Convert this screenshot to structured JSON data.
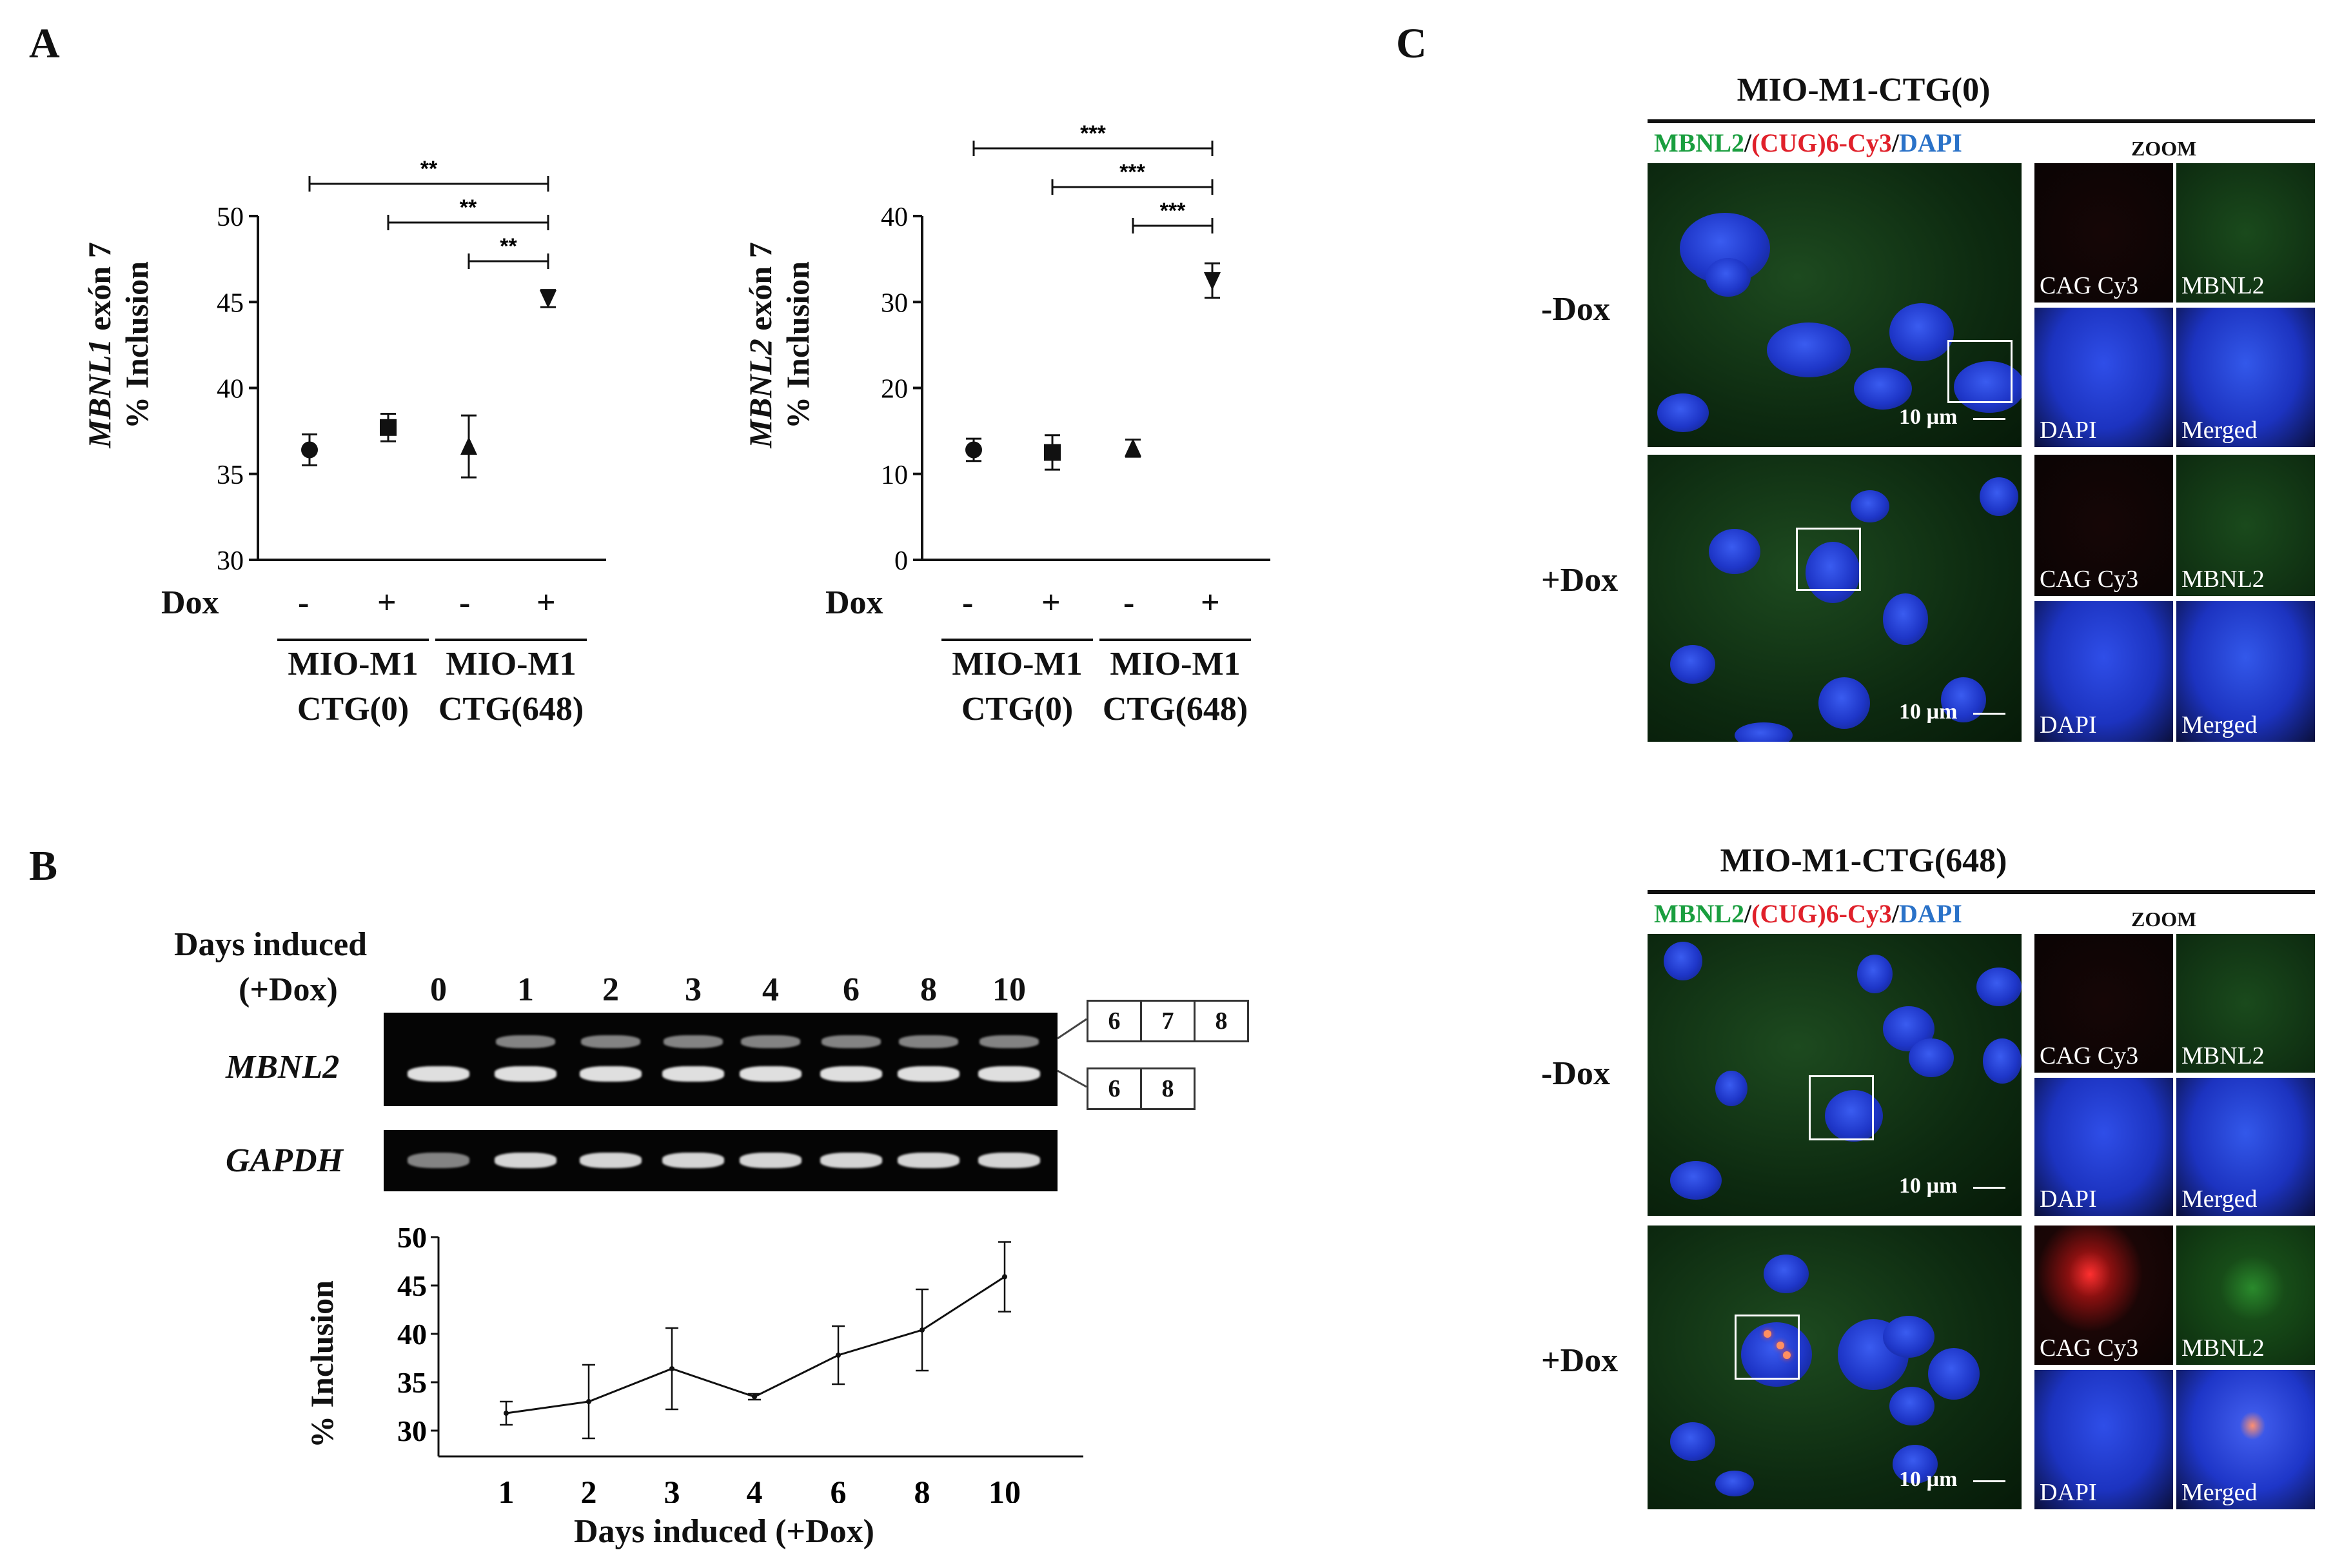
{
  "panels": {
    "a": "A",
    "b": "B",
    "c": "C"
  },
  "panelA": {
    "dox_label": "Dox",
    "dox_values": [
      "-",
      "+",
      "-",
      "+"
    ],
    "group1_line1": "MIO-M1",
    "group1_line2": "CTG(0)",
    "group2_line1": "MIO-M1",
    "group2_line2": "CTG(648)"
  },
  "panelB": {
    "days_label_1": "Days induced",
    "days_label_2": "(+Dox)",
    "lanes": [
      "0",
      "1",
      "2",
      "3",
      "4",
      "6",
      "8",
      "10"
    ],
    "gene1": "MBNL2",
    "gene2": "GAPDH",
    "exons_upper": [
      "6",
      "7",
      "8"
    ],
    "exons_lower": [
      "6",
      "8"
    ]
  },
  "panelC": {
    "title1": "MIO-M1-CTG(0)",
    "title2": "MIO-M1-CTG(648)",
    "legend_green": "MBNL2",
    "legend_sep1": "/",
    "legend_red": "(CUG)6-Cy3",
    "legend_sep2": "/",
    "legend_blue": "DAPI",
    "zoom": "ZOOM",
    "minus_dox": "-Dox",
    "plus_dox": "+Dox",
    "scale": "10 µm",
    "tile_labels": [
      "CAG Cy3",
      "MBNL2",
      "DAPI",
      "Merged"
    ]
  },
  "colors": {
    "green": "#1a9e3f",
    "red": "#e0202a",
    "blue": "#2a72c8",
    "cell_blue": "#1f3fd0",
    "bg_green": "#0f3312"
  },
  "chart_data": [
    {
      "type": "scatter",
      "ylabel_italic": "MBNL1",
      "ylabel_rest": " exón 7",
      "ylabel2": "% Inclusion",
      "ylim": [
        30,
        50
      ],
      "yticks": [
        "30",
        "35",
        "40",
        "45",
        "50"
      ],
      "points": [
        {
          "value": 36.4,
          "err": 0.9,
          "marker": "circle"
        },
        {
          "value": 37.7,
          "err": 0.8,
          "marker": "square"
        },
        {
          "value": 36.6,
          "err": 1.8,
          "marker": "triangle-up"
        },
        {
          "value": 45.2,
          "err": 0.5,
          "marker": "triangle-down"
        }
      ],
      "significance": [
        {
          "from": 0,
          "to": 3,
          "label": "**"
        },
        {
          "from": 1,
          "to": 3,
          "label": "**"
        },
        {
          "from": 2,
          "to": 3,
          "label": "**"
        }
      ]
    },
    {
      "type": "scatter",
      "ylabel_italic": "MBNL2",
      "ylabel_rest": " exón 7",
      "ylabel2": "% Inclusion",
      "ylim": [
        0,
        40
      ],
      "yticks": [
        "0",
        "10",
        "20",
        "30",
        "40"
      ],
      "points": [
        {
          "value": 12.8,
          "err": 1.3,
          "marker": "circle"
        },
        {
          "value": 12.5,
          "err": 2.0,
          "marker": "square"
        },
        {
          "value": 13.0,
          "err": 1.0,
          "marker": "triangle-up"
        },
        {
          "value": 32.5,
          "err": 2.0,
          "marker": "triangle-down"
        }
      ],
      "significance": [
        {
          "from": 0,
          "to": 3,
          "label": "***"
        },
        {
          "from": 1,
          "to": 3,
          "label": "***"
        },
        {
          "from": 2,
          "to": 3,
          "label": "***"
        }
      ]
    },
    {
      "type": "line",
      "xlabel": "Days induced (+Dox)",
      "ylabel": "% Inclusion",
      "x": [
        "1",
        "2",
        "3",
        "4",
        "6",
        "8",
        "10"
      ],
      "values": [
        31.8,
        33.0,
        36.4,
        33.5,
        37.8,
        40.4,
        45.9
      ],
      "errors": [
        1.2,
        3.8,
        4.2,
        0.3,
        3.0,
        4.2,
        3.6
      ],
      "ylim": [
        30,
        50
      ],
      "yticks": [
        "30",
        "35",
        "40",
        "45",
        "50"
      ]
    }
  ]
}
